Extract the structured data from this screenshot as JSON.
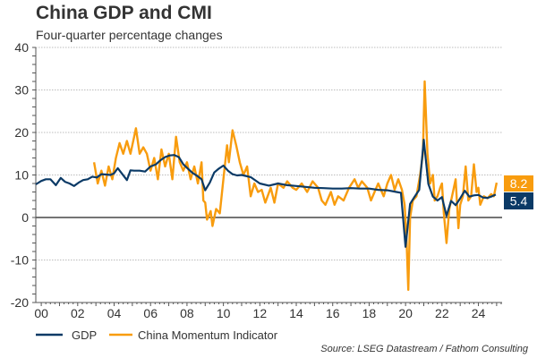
{
  "chart_data": {
    "type": "line",
    "title": "China GDP and CMI",
    "subtitle": "Four-quarter percentage changes",
    "source": "Source: LSEG Datastream / Fathom Consulting",
    "xlim": [
      1999.7,
      2025.3
    ],
    "ylim": [
      -20,
      40
    ],
    "yticks": [
      -20,
      -10,
      0,
      10,
      20,
      30,
      40
    ],
    "xticks": [
      2000,
      2002,
      2004,
      2006,
      2008,
      2010,
      2012,
      2014,
      2016,
      2018,
      2020,
      2022,
      2024
    ],
    "xtick_labels": [
      "00",
      "02",
      "04",
      "06",
      "08",
      "10",
      "12",
      "14",
      "16",
      "18",
      "20",
      "22",
      "24"
    ],
    "grid": "horizontal dotted",
    "legend_placement": "bottom-left",
    "series": [
      {
        "name": "GDP",
        "color": "#0b3a66",
        "end_label": "5.4",
        "x": [
          1999.7,
          2000.0,
          2000.25,
          2000.5,
          2000.8,
          2001.07,
          2001.3,
          2001.55,
          2001.8,
          2002.05,
          2002.3,
          2002.55,
          2002.8,
          2003.05,
          2003.3,
          2003.55,
          2003.8,
          2004.0,
          2004.2,
          2004.45,
          2004.7,
          2004.9,
          2005.1,
          2005.4,
          2005.7,
          2006.0,
          2006.3,
          2006.55,
          2006.8,
          2007.05,
          2007.3,
          2007.55,
          2007.8,
          2008.05,
          2008.3,
          2008.55,
          2008.8,
          2009.0,
          2009.25,
          2009.5,
          2009.75,
          2010.0,
          2010.25,
          2010.5,
          2010.75,
          2011.0,
          2011.5,
          2012.0,
          2012.5,
          2013.0,
          2013.5,
          2014.0,
          2014.5,
          2015.0,
          2015.5,
          2016.0,
          2016.5,
          2017.0,
          2017.5,
          2018.0,
          2018.5,
          2019.0,
          2019.5,
          2019.75,
          2020.0,
          2020.25,
          2020.5,
          2020.75,
          2021.0,
          2021.25,
          2021.5,
          2021.75,
          2022.0,
          2022.25,
          2022.5,
          2022.75,
          2023.0,
          2023.25,
          2023.5,
          2023.75,
          2024.0,
          2024.25,
          2024.5,
          2024.75,
          2024.95
        ],
        "values": [
          7.8,
          8.6,
          9.0,
          9.0,
          7.6,
          9.3,
          8.4,
          8.0,
          7.4,
          8.2,
          8.8,
          9.0,
          9.6,
          9.4,
          10.2,
          10.1,
          10.0,
          10.4,
          11.6,
          10.2,
          8.8,
          11.1,
          11.0,
          11.0,
          10.8,
          12.0,
          12.5,
          13.5,
          14.2,
          14.6,
          14.7,
          14.2,
          12.5,
          11.5,
          10.5,
          9.8,
          9.0,
          6.4,
          8.2,
          10.6,
          11.5,
          12.2,
          11.0,
          10.2,
          9.9,
          10.0,
          9.5,
          8.0,
          7.5,
          8.0,
          7.6,
          7.4,
          7.2,
          7.0,
          6.9,
          6.8,
          6.8,
          6.9,
          6.8,
          6.8,
          6.5,
          6.4,
          6.0,
          5.8,
          -6.9,
          3.2,
          4.9,
          6.5,
          18.3,
          7.9,
          4.9,
          4.0,
          4.8,
          0.4,
          3.9,
          2.9,
          4.5,
          6.3,
          4.9,
          5.2,
          5.3,
          4.7,
          4.6,
          5.0,
          5.4
        ]
      },
      {
        "name": "China Momentum Indicator",
        "color": "#f89c0e",
        "end_label": "8.2",
        "x": [
          2002.9,
          2003.1,
          2003.3,
          2003.5,
          2003.7,
          2003.9,
          2004.1,
          2004.3,
          2004.5,
          2004.7,
          2004.9,
          2005.1,
          2005.2,
          2005.4,
          2005.6,
          2005.8,
          2006.0,
          2006.2,
          2006.4,
          2006.6,
          2006.8,
          2007.0,
          2007.2,
          2007.4,
          2007.6,
          2007.8,
          2008.0,
          2008.2,
          2008.4,
          2008.6,
          2008.8,
          2008.9,
          2009.0,
          2009.1,
          2009.3,
          2009.4,
          2009.6,
          2009.8,
          2010.0,
          2010.2,
          2010.3,
          2010.5,
          2010.7,
          2010.9,
          2011.1,
          2011.3,
          2011.5,
          2011.7,
          2011.9,
          2012.1,
          2012.3,
          2012.6,
          2012.8,
          2013.0,
          2013.3,
          2013.5,
          2013.8,
          2014.0,
          2014.3,
          2014.6,
          2014.9,
          2015.2,
          2015.4,
          2015.6,
          2015.9,
          2016.1,
          2016.3,
          2016.6,
          2016.9,
          2017.2,
          2017.4,
          2017.6,
          2017.9,
          2018.1,
          2018.3,
          2018.5,
          2018.8,
          2019.0,
          2019.2,
          2019.4,
          2019.6,
          2019.8,
          2019.95,
          2020.05,
          2020.15,
          2020.25,
          2020.4,
          2020.6,
          2020.8,
          2020.95,
          2021.05,
          2021.2,
          2021.35,
          2021.5,
          2021.6,
          2021.75,
          2021.9,
          2022.0,
          2022.1,
          2022.25,
          2022.4,
          2022.6,
          2022.75,
          2022.9,
          2023.0,
          2023.15,
          2023.3,
          2023.45,
          2023.6,
          2023.75,
          2023.9,
          2024.0,
          2024.1,
          2024.3,
          2024.5,
          2024.7,
          2024.85,
          2025.0
        ],
        "values": [
          13,
          8,
          11,
          7.5,
          12,
          9,
          14,
          17.5,
          15,
          18,
          15,
          19,
          21,
          15,
          16.5,
          15,
          11,
          14,
          9,
          16,
          12,
          15,
          9,
          19,
          13,
          11,
          13,
          9,
          12,
          8,
          13,
          4,
          3.5,
          -0.5,
          1.5,
          -2,
          2,
          1,
          9,
          17,
          13,
          20.5,
          17,
          13,
          10,
          12,
          5,
          8,
          6,
          6.5,
          3.5,
          7,
          3.5,
          8,
          7,
          8.5,
          7,
          6.5,
          8,
          6,
          8.5,
          7,
          4,
          3,
          6,
          3,
          5,
          4,
          7,
          9,
          7,
          8.5,
          7,
          4,
          6,
          8,
          5,
          8,
          10,
          6.5,
          9,
          6.5,
          3,
          -5,
          -17,
          0,
          4,
          5,
          10,
          15,
          32,
          15,
          8,
          10,
          4,
          5,
          7,
          8,
          1,
          -6,
          2,
          6,
          9,
          -2.5,
          3,
          5,
          12,
          4,
          5,
          12.5,
          6,
          7,
          3,
          5,
          4.5,
          5.5,
          5,
          8.2
        ]
      }
    ]
  }
}
